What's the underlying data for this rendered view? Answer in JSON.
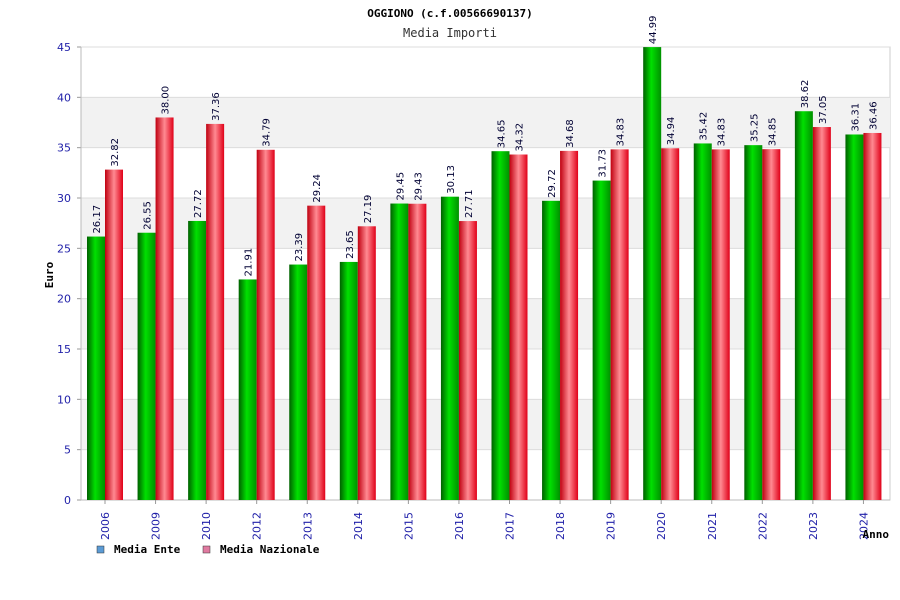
{
  "chart_data": {
    "type": "bar",
    "title": "OGGIONO (c.f.00566690137)",
    "subtitle": "Media Importi",
    "xlabel": "Anno",
    "ylabel": "Euro",
    "ylim": [
      0,
      45
    ],
    "yticks": [
      0,
      5,
      10,
      15,
      20,
      25,
      30,
      35,
      40,
      45
    ],
    "categories": [
      "2006",
      "2009",
      "2010",
      "2012",
      "2013",
      "2014",
      "2015",
      "2016",
      "2017",
      "2018",
      "2019",
      "2020",
      "2021",
      "2022",
      "2023",
      "2024"
    ],
    "series": [
      {
        "name": "Media Ente",
        "color": "#00c000",
        "values": [
          26.17,
          26.55,
          27.72,
          21.91,
          23.39,
          23.65,
          29.45,
          30.13,
          34.65,
          29.72,
          31.73,
          44.99,
          35.42,
          35.25,
          38.62,
          36.31
        ],
        "labels": [
          "26.17",
          "26.55",
          "27.72",
          "21.91",
          "23.39",
          "23.65",
          "29.45",
          "30.13",
          "34.65",
          "29.72",
          "31.73",
          "44.99",
          "35.42",
          "35.25",
          "38.62",
          "36.31"
        ]
      },
      {
        "name": "Media Nazionale",
        "color": "#ff2030",
        "values": [
          32.82,
          38.0,
          37.36,
          34.79,
          29.24,
          27.19,
          29.43,
          27.71,
          34.32,
          34.68,
          34.83,
          34.94,
          34.83,
          34.85,
          37.05,
          36.46
        ],
        "labels": [
          "32.82",
          "38.00",
          "37.36",
          "34.79",
          "29.24",
          "27.19",
          "29.43",
          "27.71",
          "34.32",
          "34.68",
          "34.83",
          "34.94",
          "34.83",
          "34.85",
          "37.05",
          "36.46"
        ]
      }
    ],
    "legend": [
      {
        "label": "Media Ente",
        "color": "#5b9bd5"
      },
      {
        "label": "Media Nazionale",
        "color": "#e07aa0"
      }
    ],
    "legend_position": "bottom-left",
    "grid": true
  }
}
